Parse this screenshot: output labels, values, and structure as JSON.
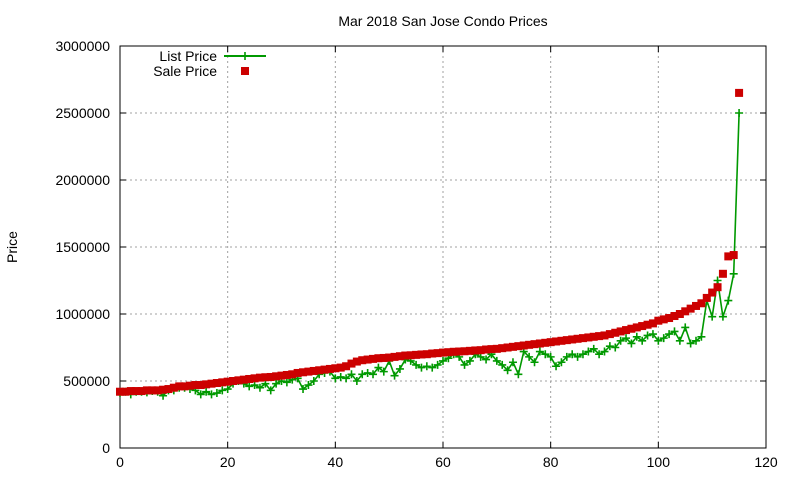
{
  "chart_data": {
    "type": "line",
    "title": "Mar 2018 San Jose Condo Prices",
    "xlabel": "",
    "ylabel": "Price",
    "xlim": [
      0,
      120
    ],
    "ylim": [
      0,
      3000000
    ],
    "x_ticks": [
      0,
      20,
      40,
      60,
      80,
      100,
      120
    ],
    "y_ticks": [
      0,
      500000,
      1000000,
      1500000,
      2000000,
      2500000,
      3000000
    ],
    "grid": true,
    "legend_position": "top-left",
    "series": [
      {
        "name": "List Price",
        "style": "lines+points",
        "marker": "plus",
        "color": "#009900",
        "x": [
          0,
          1,
          2,
          3,
          4,
          5,
          6,
          7,
          8,
          9,
          10,
          11,
          12,
          13,
          14,
          15,
          16,
          17,
          18,
          19,
          20,
          21,
          22,
          23,
          24,
          25,
          26,
          27,
          28,
          29,
          30,
          31,
          32,
          33,
          34,
          35,
          36,
          37,
          38,
          39,
          40,
          41,
          42,
          43,
          44,
          45,
          46,
          47,
          48,
          49,
          50,
          51,
          52,
          53,
          54,
          55,
          56,
          57,
          58,
          59,
          60,
          61,
          62,
          63,
          64,
          65,
          66,
          67,
          68,
          69,
          70,
          71,
          72,
          73,
          74,
          75,
          76,
          77,
          78,
          79,
          80,
          81,
          82,
          83,
          84,
          85,
          86,
          87,
          88,
          89,
          90,
          91,
          92,
          93,
          94,
          95,
          96,
          97,
          98,
          99,
          100,
          101,
          102,
          103,
          104,
          105,
          106,
          107,
          108,
          109,
          110,
          111,
          112,
          113,
          114,
          115
        ],
        "y": [
          410000,
          420000,
          400000,
          420000,
          420000,
          415000,
          425000,
          420000,
          390000,
          430000,
          430000,
          450000,
          450000,
          440000,
          430000,
          400000,
          420000,
          400000,
          410000,
          430000,
          440000,
          480000,
          500000,
          480000,
          460000,
          470000,
          450000,
          480000,
          430000,
          480000,
          500000,
          490000,
          510000,
          520000,
          440000,
          470000,
          500000,
          550000,
          560000,
          570000,
          520000,
          530000,
          520000,
          550000,
          500000,
          550000,
          560000,
          550000,
          600000,
          570000,
          650000,
          540000,
          590000,
          660000,
          650000,
          620000,
          600000,
          610000,
          600000,
          620000,
          650000,
          670000,
          700000,
          680000,
          620000,
          650000,
          700000,
          680000,
          660000,
          700000,
          650000,
          620000,
          580000,
          640000,
          550000,
          720000,
          680000,
          640000,
          720000,
          700000,
          680000,
          610000,
          640000,
          680000,
          700000,
          680000,
          700000,
          720000,
          740000,
          700000,
          720000,
          760000,
          750000,
          800000,
          820000,
          780000,
          830000,
          800000,
          840000,
          850000,
          800000,
          820000,
          850000,
          870000,
          800000,
          900000,
          780000,
          800000,
          830000,
          1100000,
          980000,
          1250000,
          980000,
          1100000,
          1300000,
          2500000
        ]
      },
      {
        "name": "Sale Price",
        "style": "points",
        "marker": "square",
        "color": "#cc0000",
        "x": [
          0,
          1,
          2,
          3,
          4,
          5,
          6,
          7,
          8,
          9,
          10,
          11,
          12,
          13,
          14,
          15,
          16,
          17,
          18,
          19,
          20,
          21,
          22,
          23,
          24,
          25,
          26,
          27,
          28,
          29,
          30,
          31,
          32,
          33,
          34,
          35,
          36,
          37,
          38,
          39,
          40,
          41,
          42,
          43,
          44,
          45,
          46,
          47,
          48,
          49,
          50,
          51,
          52,
          53,
          54,
          55,
          56,
          57,
          58,
          59,
          60,
          61,
          62,
          63,
          64,
          65,
          66,
          67,
          68,
          69,
          70,
          71,
          72,
          73,
          74,
          75,
          76,
          77,
          78,
          79,
          80,
          81,
          82,
          83,
          84,
          85,
          86,
          87,
          88,
          89,
          90,
          91,
          92,
          93,
          94,
          95,
          96,
          97,
          98,
          99,
          100,
          101,
          102,
          103,
          104,
          105,
          106,
          107,
          108,
          109,
          110,
          111,
          112,
          113,
          114,
          115
        ],
        "y": [
          420000,
          420000,
          425000,
          425000,
          425000,
          430000,
          430000,
          430000,
          435000,
          440000,
          450000,
          460000,
          460000,
          465000,
          470000,
          470000,
          475000,
          480000,
          485000,
          490000,
          495000,
          500000,
          505000,
          510000,
          515000,
          520000,
          525000,
          528000,
          530000,
          535000,
          540000,
          545000,
          550000,
          560000,
          565000,
          570000,
          575000,
          580000,
          585000,
          590000,
          595000,
          600000,
          610000,
          630000,
          645000,
          655000,
          660000,
          665000,
          670000,
          672000,
          675000,
          680000,
          685000,
          690000,
          692000,
          695000,
          698000,
          700000,
          705000,
          708000,
          712000,
          715000,
          718000,
          720000,
          722000,
          725000,
          728000,
          730000,
          735000,
          738000,
          740000,
          745000,
          750000,
          755000,
          760000,
          765000,
          770000,
          775000,
          780000,
          785000,
          790000,
          795000,
          800000,
          805000,
          810000,
          815000,
          820000,
          825000,
          830000,
          835000,
          840000,
          850000,
          860000,
          870000,
          880000,
          890000,
          900000,
          910000,
          920000,
          930000,
          950000,
          960000,
          970000,
          985000,
          1000000,
          1020000,
          1040000,
          1060000,
          1080000,
          1120000,
          1160000,
          1200000,
          1300000,
          1430000,
          1440000,
          2650000
        ]
      }
    ]
  }
}
